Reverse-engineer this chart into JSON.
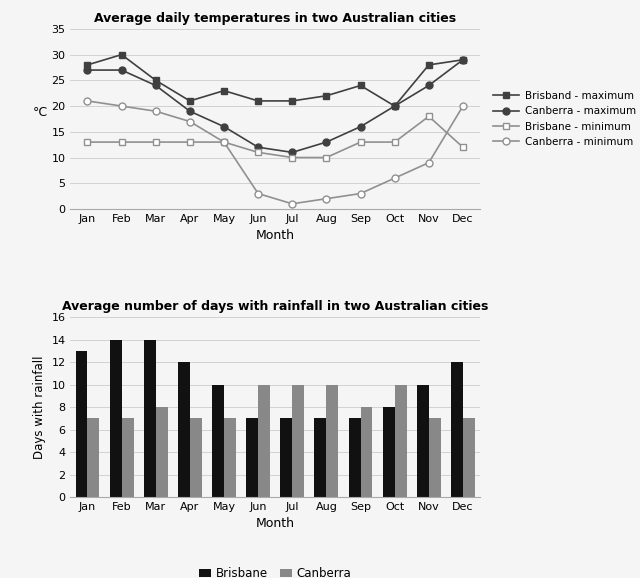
{
  "title_top": "Average daily temperatures in two Australian cities",
  "title_bottom": "Average number of days with rainfall in two Australian cities",
  "months": [
    "Jan",
    "Feb",
    "Mar",
    "Apr",
    "May",
    "Jun",
    "Jul",
    "Aug",
    "Sep",
    "Oct",
    "Nov",
    "Dec"
  ],
  "brisbane_max": [
    28,
    30,
    25,
    21,
    23,
    21,
    21,
    22,
    24,
    20,
    28,
    29
  ],
  "canberra_max": [
    27,
    27,
    24,
    19,
    16,
    12,
    11,
    13,
    16,
    20,
    24,
    29
  ],
  "brisbane_min": [
    13,
    13,
    13,
    13,
    13,
    11,
    10,
    10,
    13,
    13,
    18,
    12
  ],
  "canberra_min": [
    21,
    20,
    19,
    17,
    13,
    3,
    1,
    2,
    3,
    6,
    9,
    20
  ],
  "brisbane_rain": [
    13,
    14,
    14,
    12,
    10,
    7,
    7,
    7,
    7,
    8,
    10,
    12
  ],
  "canberra_rain": [
    7,
    7,
    8,
    7,
    7,
    10,
    10,
    10,
    8,
    10,
    7,
    7
  ],
  "line_brisbane_max_color": "#404040",
  "line_canberra_max_color": "#404040",
  "line_brisbane_min_color": "#909090",
  "line_canberra_min_color": "#909090",
  "bar_brisbane_color": "#111111",
  "bar_canberra_color": "#888888",
  "temp_ylim": [
    0,
    35
  ],
  "temp_yticks": [
    0,
    5,
    10,
    15,
    20,
    25,
    30,
    35
  ],
  "rain_ylim": [
    0,
    16
  ],
  "rain_yticks": [
    0,
    2,
    4,
    6,
    8,
    10,
    12,
    14,
    16
  ],
  "xlabel": "Month",
  "ylabel_top": "°C",
  "ylabel_bottom": "Days with rainfall",
  "legend_top": [
    "Brisband - maximum",
    "Canberra - maximum",
    "Brisbane - minimum",
    "Canberra - minimum"
  ],
  "legend_bottom": [
    "Brisbane",
    "Canberra"
  ],
  "background_color": "#f5f5f5",
  "fig_width": 6.4,
  "fig_height": 5.78
}
